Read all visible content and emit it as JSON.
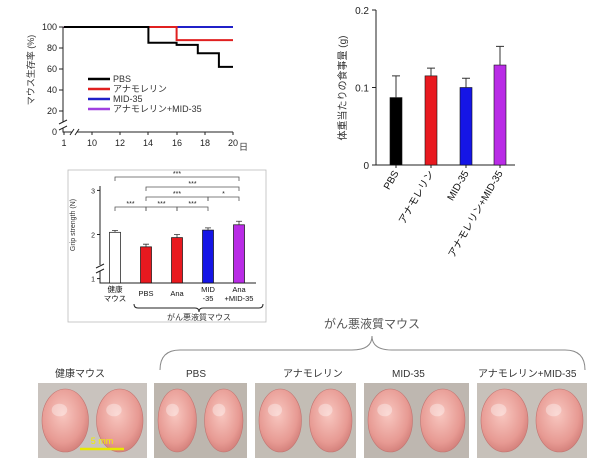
{
  "chart_data": [
    {
      "type": "line",
      "subtype": "step-survival",
      "ylabel": "マウス生存率 (%)",
      "xlabel_unit": "日",
      "x_ticks": [
        "1",
        "10",
        "12",
        "14",
        "16",
        "18",
        "20"
      ],
      "y_ticks": [
        "0",
        "20",
        "40",
        "60",
        "80",
        "100"
      ],
      "xlim": [
        8,
        20
      ],
      "ylim": [
        0,
        100
      ],
      "axis_breaks": [
        "x",
        "y"
      ],
      "series": [
        {
          "name": "PBS",
          "color": "#000000",
          "x": [
            8,
            14,
            14,
            16,
            16,
            17.5,
            17.5,
            19,
            19,
            20
          ],
          "y": [
            100,
            100,
            85,
            85,
            83,
            83,
            75,
            75,
            62,
            62
          ]
        },
        {
          "name": "アナモレリン",
          "color": "#e02020",
          "x": [
            8,
            16,
            16,
            20
          ],
          "y": [
            100,
            100,
            87.5,
            87.5
          ]
        },
        {
          "name": "MID-35",
          "color": "#2020c8",
          "x": [
            8,
            20
          ],
          "y": [
            100,
            100
          ]
        },
        {
          "name": "アナモレリン+MID-35",
          "color": "#a040e0",
          "x": [
            8,
            20
          ],
          "y": [
            100,
            100
          ]
        }
      ]
    },
    {
      "type": "bar",
      "ylabel": "体重当たりの食事量 (g)",
      "categories": [
        "PBS",
        "アナモレリン",
        "MID-35",
        "アナモレリン+MID-35"
      ],
      "values": [
        0.087,
        0.115,
        0.1,
        0.129
      ],
      "errors": [
        0.028,
        0.01,
        0.012,
        0.024
      ],
      "colors": [
        "#000000",
        "#e8191f",
        "#1515e6",
        "#b92ce6"
      ],
      "y_ticks": [
        "0",
        "0.1",
        "0.2"
      ],
      "ylim": [
        0,
        0.2
      ]
    },
    {
      "type": "bar",
      "ylabel": "Grip strength (N)",
      "categories": [
        "健康\nマウス",
        "PBS",
        "Ana",
        "MID\n-35",
        "Ana\n+MID-35"
      ],
      "values": [
        2.05,
        1.72,
        1.93,
        2.1,
        2.22
      ],
      "errors": [
        0.04,
        0.06,
        0.07,
        0.05,
        0.08
      ],
      "colors": [
        "#ffffff",
        "#e8191f",
        "#e8191f",
        "#1515e6",
        "#b92ce6"
      ],
      "y_ticks": [
        "1",
        "2",
        "3"
      ],
      "ylim": [
        0.9,
        3.1
      ],
      "group_label": "がん悪液質マウス",
      "significance": [
        {
          "from": 0,
          "to": 1,
          "label": "***"
        },
        {
          "from": 1,
          "to": 2,
          "label": "***"
        },
        {
          "from": 2,
          "to": 3,
          "label": "***"
        },
        {
          "from": 1,
          "to": 3,
          "label": "***"
        },
        {
          "from": 3,
          "to": 4,
          "label": "*"
        },
        {
          "from": 1,
          "to": 4,
          "label": "***"
        },
        {
          "from": 0,
          "to": 4,
          "label": "***"
        }
      ]
    }
  ],
  "photos": {
    "group_title": "がん悪液質マウス",
    "labels": [
      "健康マウス",
      "PBS",
      "アナモレリン",
      "MID-35",
      "アナモレリン+MID-35"
    ],
    "scale_bar": "5 mm"
  }
}
